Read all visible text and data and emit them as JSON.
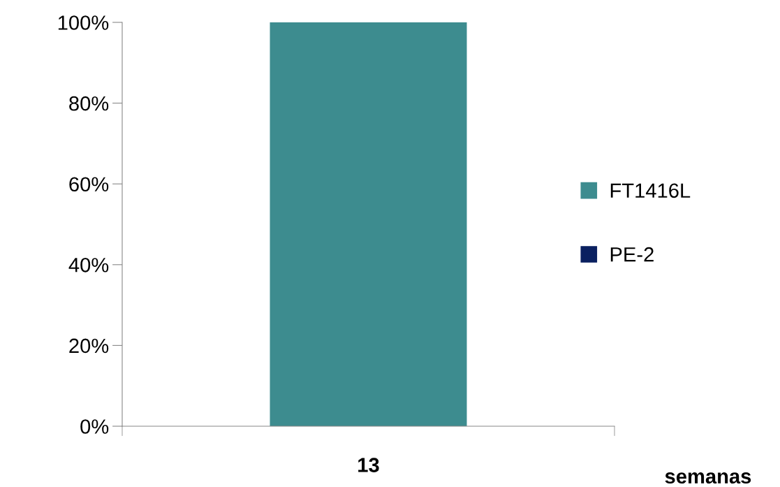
{
  "chart_data": {
    "type": "bar",
    "stacked": true,
    "categories": [
      "13"
    ],
    "xlabel": "semanas",
    "series": [
      {
        "name": "FT1416L",
        "color": "#3d8c8f",
        "values": [
          100
        ]
      },
      {
        "name": "PE-2",
        "color": "#0a2060",
        "values": [
          0
        ]
      }
    ],
    "ylim": [
      0,
      100
    ],
    "yticks": [
      {
        "value": 0,
        "label": "0%"
      },
      {
        "value": 20,
        "label": "20%"
      },
      {
        "value": 40,
        "label": "40%"
      },
      {
        "value": 60,
        "label": "60%"
      },
      {
        "value": 80,
        "label": "80%"
      },
      {
        "value": 100,
        "label": "100%"
      }
    ],
    "legend": "right",
    "grid": false
  }
}
